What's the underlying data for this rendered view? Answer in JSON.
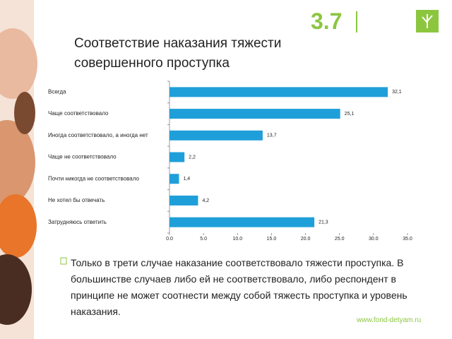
{
  "slide": {
    "section_number": "3.7",
    "note": "Только в трети случае наказание соответствовало тяжести проступка. В большинстве случаев либо ей не соответствовало, либо респондент в принципе не может соотнести между собой тяжесть проступка и уровень наказания.",
    "website": "www.fond-detyam.ru"
  },
  "chart_data": {
    "type": "bar",
    "orientation": "horizontal",
    "title": "Соответствие наказания тяжести совершенного проступка",
    "categories": [
      "Всегда",
      "Чаще соответствовало",
      "Иногда соответствовало, а иногда нет",
      "Чаще не соответствовало",
      "Почти никогда не соответствовало",
      "Не хотел бы отвечать",
      "Затрудняюсь ответить"
    ],
    "values": [
      32.1,
      25.1,
      13.7,
      2.2,
      1.4,
      4.2,
      21.3
    ],
    "value_labels": [
      "32,1",
      "25,1",
      "13,7",
      "2,2",
      "1,4",
      "4,2",
      "21,3"
    ],
    "color": "#1f9fd9",
    "xlim": [
      0,
      35
    ],
    "xticks": [
      {
        "value": 0,
        "label": "0.0"
      },
      {
        "value": 5,
        "label": "5.0"
      },
      {
        "value": 10,
        "label": "10.0"
      },
      {
        "value": 15,
        "label": "15.0"
      },
      {
        "value": 20,
        "label": "20.0"
      },
      {
        "value": 25,
        "label": "25.0"
      },
      {
        "value": 30,
        "label": "30.0"
      },
      {
        "value": 35,
        "label": "35.0"
      }
    ],
    "grid": false
  }
}
